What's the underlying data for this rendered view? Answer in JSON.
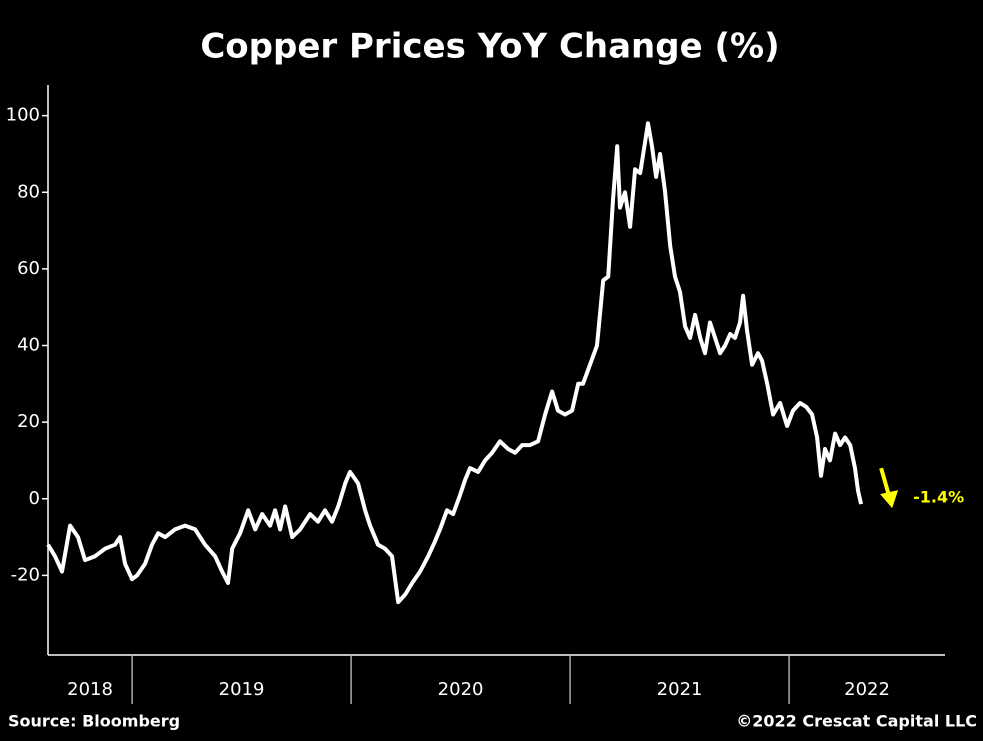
{
  "chart_data": {
    "type": "line",
    "title": "Copper Prices YoY Change (%)",
    "color": "#ffffff",
    "x": [
      2018.616,
      2018.648,
      2018.68,
      2018.717,
      2018.753,
      2018.785,
      2018.831,
      2018.877,
      2018.922,
      2018.945,
      2018.968,
      2019.0,
      2019.023,
      2019.059,
      2019.091,
      2019.119,
      2019.151,
      2019.196,
      2019.242,
      2019.288,
      2019.333,
      2019.379,
      2019.411,
      2019.438,
      2019.457,
      2019.493,
      2019.53,
      2019.562,
      2019.594,
      2019.63,
      2019.653,
      2019.676,
      2019.699,
      2019.731,
      2019.767,
      2019.813,
      2019.849,
      2019.881,
      2019.913,
      2019.941,
      2019.973,
      2019.995,
      2020.032,
      2020.064,
      2020.087,
      2020.123,
      2020.155,
      2020.187,
      2020.215,
      2020.247,
      2020.279,
      2020.315,
      2020.352,
      2020.384,
      2020.406,
      2020.438,
      2020.466,
      2020.498,
      2020.521,
      2020.543,
      2020.58,
      2020.612,
      2020.644,
      2020.68,
      2020.717,
      2020.749,
      2020.781,
      2020.817,
      2020.854,
      2020.886,
      2020.918,
      2020.945,
      2020.977,
      2021.009,
      2021.037,
      2021.059,
      2021.091,
      2021.123,
      2021.151,
      2021.174,
      2021.196,
      2021.215,
      2021.228,
      2021.251,
      2021.274,
      2021.297,
      2021.32,
      2021.342,
      2021.356,
      2021.374,
      2021.393,
      2021.411,
      2021.434,
      2021.457,
      2021.479,
      2021.502,
      2021.525,
      2021.548,
      2021.571,
      2021.594,
      2021.616,
      2021.639,
      2021.662,
      2021.685,
      2021.708,
      2021.731,
      2021.753,
      2021.776,
      2021.79,
      2021.808,
      2021.831,
      2021.858,
      2021.877,
      2021.9,
      2021.927,
      2021.959,
      2021.991,
      2022.018,
      2022.05,
      2022.078,
      2022.105,
      2022.128,
      2022.146,
      2022.164,
      2022.187,
      2022.21,
      2022.233,
      2022.256,
      2022.279,
      2022.301,
      2022.315,
      2022.329
    ],
    "values": [
      -12,
      -15,
      -19,
      -7,
      -10,
      -16,
      -15,
      -13,
      -12,
      -10,
      -17,
      -21,
      -20,
      -17,
      -12,
      -9,
      -10,
      -8,
      -7,
      -8,
      -12,
      -15,
      -19,
      -22,
      -13,
      -9,
      -3,
      -8,
      -4,
      -7,
      -3,
      -8,
      -2,
      -10,
      -8,
      -4,
      -6,
      -3,
      -6,
      -2,
      4,
      7,
      4,
      -3,
      -7,
      -12,
      -13,
      -15,
      -27,
      -25,
      -22,
      -19,
      -15,
      -11,
      -8,
      -3,
      -4,
      1,
      5,
      8,
      7,
      10,
      12,
      15,
      13,
      12,
      14,
      14,
      15,
      22,
      28,
      23,
      22,
      23,
      30,
      30,
      35,
      40,
      57,
      58,
      78,
      92,
      76,
      80,
      71,
      86,
      85,
      93,
      98,
      92,
      84,
      90,
      80,
      66,
      58,
      54,
      45,
      42,
      48,
      42,
      38,
      46,
      42,
      38,
      40,
      43,
      42,
      46,
      53,
      44,
      35,
      38,
      36,
      30,
      22,
      25,
      19,
      23,
      25,
      24,
      22,
      16,
      6,
      13,
      10,
      17,
      14,
      16,
      14,
      8,
      2,
      -1.4
    ],
    "xlim": [
      2018.616,
      2022.712
    ],
    "xticks": [
      2018,
      2019,
      2020,
      2021,
      2022
    ],
    "ylim": [
      -40,
      108
    ],
    "yticks": [
      -20,
      0,
      20,
      40,
      60,
      80,
      100
    ],
    "annotation": {
      "text": "-1.4%",
      "color": "#ffff00"
    },
    "source": "Source: Bloomberg",
    "copyright": "©2022 Crescat Capital LLC"
  }
}
